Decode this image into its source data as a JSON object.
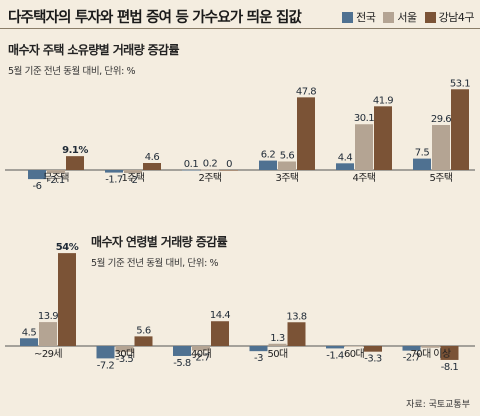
{
  "header": {
    "title": "다주택자의 투자와 편법 증여 등 가수요가 띄운 집값",
    "legend": [
      {
        "name": "전국",
        "color": "#4f7191"
      },
      {
        "name": "서울",
        "color": "#b4a493"
      },
      {
        "name": "강남4구",
        "color": "#7b5336"
      }
    ]
  },
  "source": "자료: 국토교통부",
  "chart_data": [
    {
      "type": "bar",
      "title": "매수자 주택 소유량별 거래량 증감률",
      "subtitle": "5월 기준 전년 동월 대비, 단위: %",
      "categories": [
        "무주택",
        "1주택",
        "2주택",
        "3주택",
        "4주택",
        "5주택"
      ],
      "series": [
        {
          "name": "전국",
          "values": [
            -6,
            -1.7,
            0.1,
            6.2,
            4.4,
            7.5
          ]
        },
        {
          "name": "서울",
          "values": [
            -2.1,
            -2,
            0.2,
            5.6,
            30.1,
            29.6
          ]
        },
        {
          "name": "강남4구",
          "values": [
            9.1,
            4.6,
            0,
            47.8,
            41.9,
            53.1
          ]
        }
      ],
      "value_labels": [
        [
          "-6",
          "-1.7",
          "0.1",
          "6.2",
          "4.4",
          "7.5"
        ],
        [
          "-2.1",
          "-2",
          "0.2",
          "5.6",
          "30.1",
          "29.6"
        ],
        [
          "9.1%",
          "4.6",
          "0",
          "47.8",
          "41.9",
          "53.1"
        ]
      ]
    },
    {
      "type": "bar",
      "title": "매수자 연령별 거래량 증감률",
      "subtitle": "5월 기준 전년 동월 대비, 단위: %",
      "categories": [
        "~29세",
        "30대",
        "40대",
        "50대",
        "60대",
        "70대 이상"
      ],
      "series": [
        {
          "name": "전국",
          "values": [
            4.5,
            -7.2,
            -5.8,
            -3,
            -1.4,
            -2.7
          ]
        },
        {
          "name": "서울",
          "values": [
            13.9,
            -3.5,
            -2.7,
            1.3,
            0,
            -1
          ]
        },
        {
          "name": "강남4구",
          "values": [
            54,
            5.6,
            14.4,
            13.8,
            -3.3,
            -8.1
          ]
        }
      ],
      "value_labels": [
        [
          "4.5",
          "-7.2",
          "-5.8",
          "-3",
          "-1.4",
          "-2.7"
        ],
        [
          "13.9",
          "-3.5",
          "-2.7",
          "1.3",
          "",
          ""
        ],
        [
          "54%",
          "5.6",
          "14.4",
          "13.8",
          "-3.3",
          "-8.1"
        ]
      ]
    }
  ]
}
